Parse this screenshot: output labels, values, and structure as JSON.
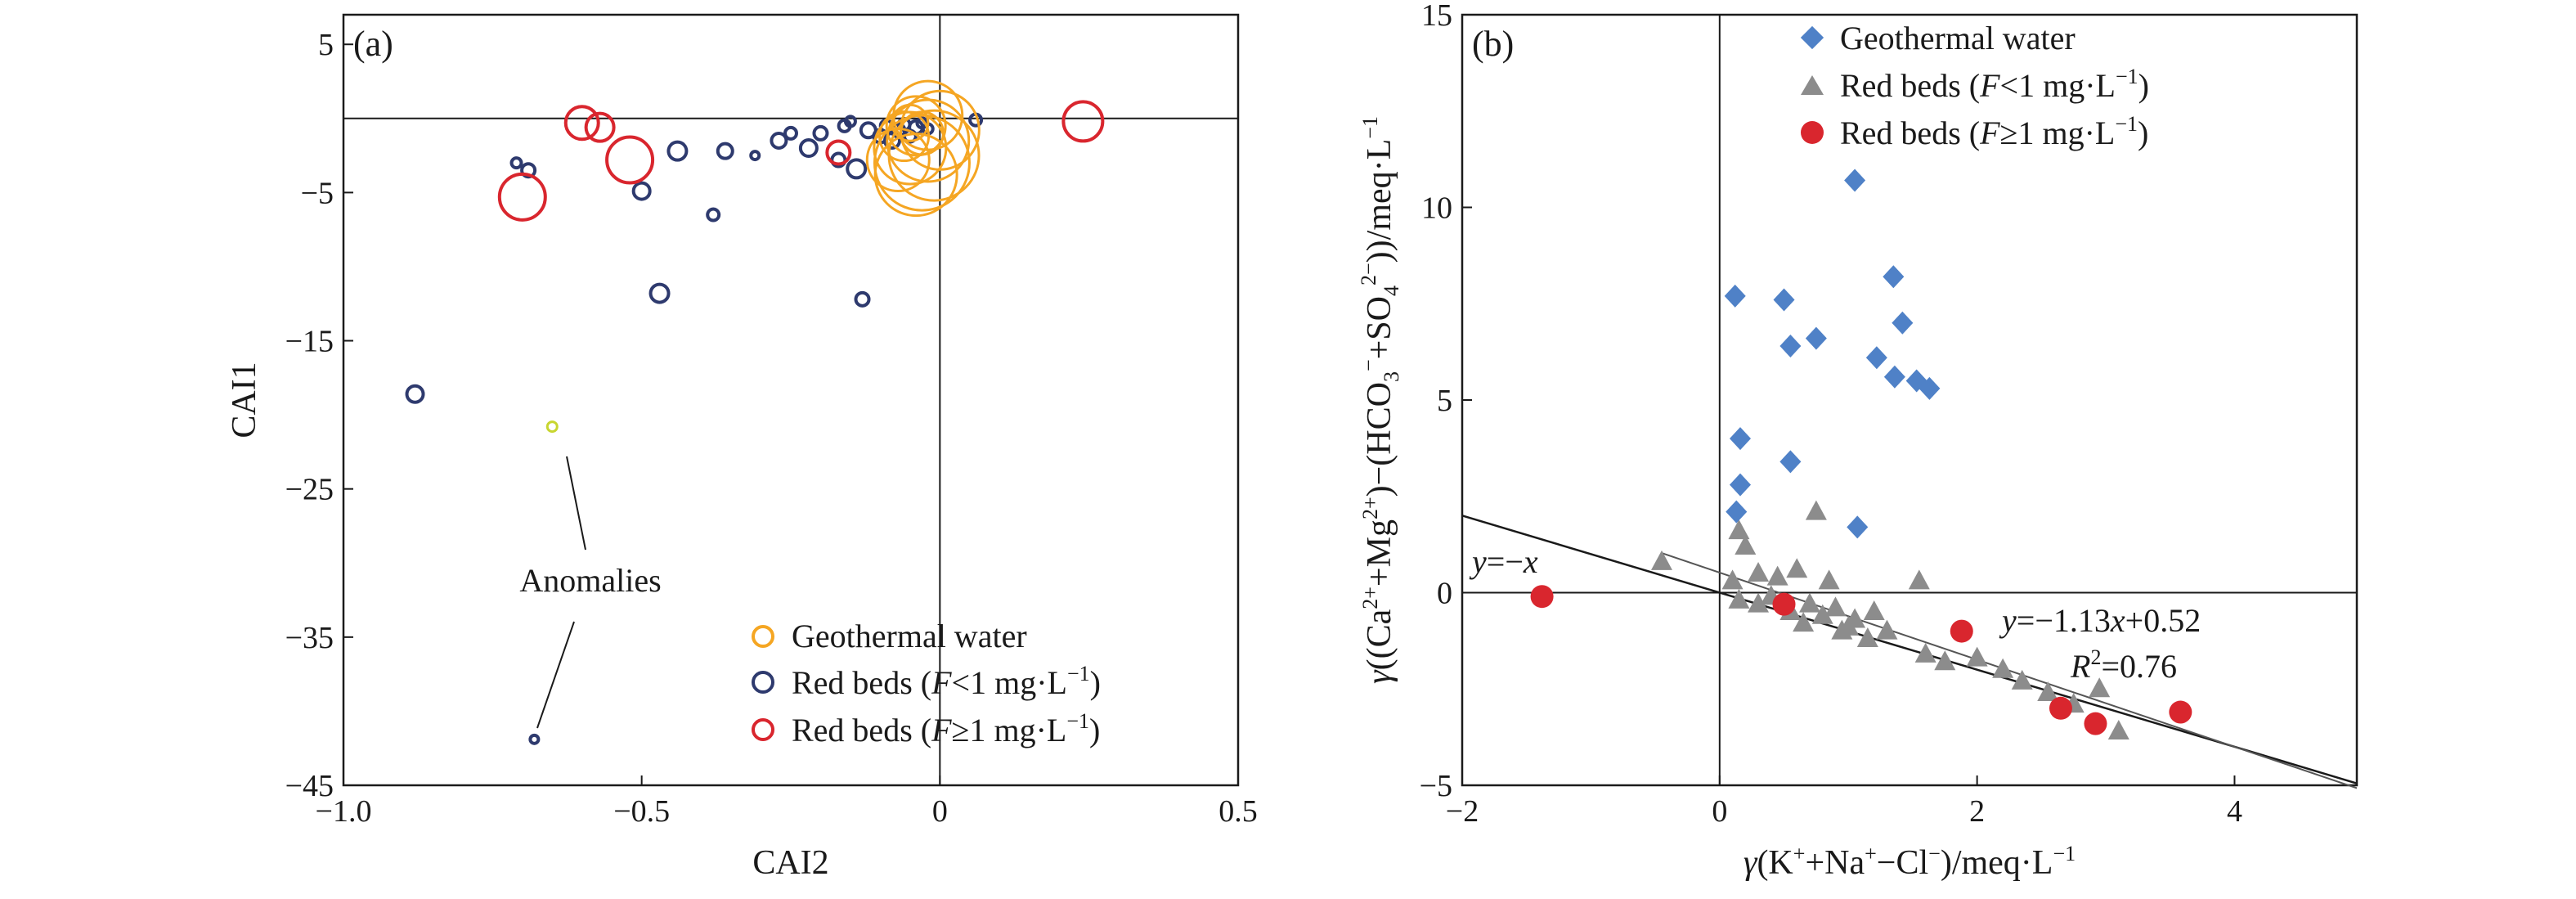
{
  "chart_data": [
    {
      "panel": "(a)",
      "type": "scatter",
      "xlabel": "CAI2",
      "ylabel": "CAI1",
      "xlim": [
        -1.0,
        0.5
      ],
      "ylim": [
        -45,
        7
      ],
      "xticks": [
        -1.0,
        -0.5,
        0,
        0.5
      ],
      "xtick_labels": [
        "−1.0",
        "−0.5",
        "0",
        "0.5"
      ],
      "yticks": [
        5,
        -5,
        -15,
        -25,
        -35,
        -45
      ],
      "ytick_labels": [
        "5",
        "−5",
        "−15",
        "−25",
        "−35",
        "−45"
      ],
      "reference_lines": {
        "x": 0,
        "y": 0
      },
      "legend_position": "bottom-right",
      "legend": [
        {
          "label": "Geothermal water",
          "color": "#F5A623",
          "marker": "open-circle"
        },
        {
          "label": "Red beds (F<1 mg·L−1)",
          "color": "#2E3A6E",
          "marker": "open-circle"
        },
        {
          "label": "Red beds (F≥1 mg·L−1)",
          "color": "#D9262E",
          "marker": "open-circle"
        }
      ],
      "annotation": {
        "text": "Anomalies",
        "targets": [
          [
            -0.65,
            -20.8
          ],
          [
            -0.68,
            -41.9
          ]
        ]
      },
      "series": [
        {
          "name": "Geothermal water",
          "color": "#F5A623",
          "points": [
            {
              "x": -0.02,
              "y": -1.5,
              "r": 50
            },
            {
              "x": -0.03,
              "y": -3.0,
              "r": 58
            },
            {
              "x": -0.05,
              "y": -2.0,
              "r": 44
            },
            {
              "x": -0.04,
              "y": -0.5,
              "r": 36
            },
            {
              "x": -0.02,
              "y": 0.2,
              "r": 42
            },
            {
              "x": -0.06,
              "y": -1.2,
              "r": 30
            },
            {
              "x": -0.01,
              "y": -2.5,
              "r": 55
            },
            {
              "x": -0.04,
              "y": -3.8,
              "r": 50
            },
            {
              "x": -0.03,
              "y": -1.0,
              "r": 26
            },
            {
              "x": -0.07,
              "y": -2.8,
              "r": 38
            },
            {
              "x": 0.0,
              "y": -0.8,
              "r": 48
            },
            {
              "x": -0.05,
              "y": -0.3,
              "r": 22
            }
          ]
        },
        {
          "name": "Red beds (F<1 mg·L−1)",
          "color": "#2E3A6E",
          "points": [
            {
              "x": -0.88,
              "y": -18.6,
              "r": 10
            },
            {
              "x": -0.68,
              "y": -41.9,
              "r": 5
            },
            {
              "x": -0.71,
              "y": -3.0,
              "r": 6
            },
            {
              "x": -0.69,
              "y": -3.5,
              "r": 8
            },
            {
              "x": -0.5,
              "y": -4.9,
              "r": 10
            },
            {
              "x": -0.47,
              "y": -11.8,
              "r": 11
            },
            {
              "x": -0.44,
              "y": -2.2,
              "r": 11
            },
            {
              "x": -0.38,
              "y": -6.5,
              "r": 7
            },
            {
              "x": -0.36,
              "y": -2.2,
              "r": 9
            },
            {
              "x": -0.31,
              "y": -2.5,
              "r": 5
            },
            {
              "x": -0.27,
              "y": -1.5,
              "r": 9
            },
            {
              "x": -0.25,
              "y": -1.0,
              "r": 7
            },
            {
              "x": -0.22,
              "y": -2.0,
              "r": 10
            },
            {
              "x": -0.2,
              "y": -1.0,
              "r": 8
            },
            {
              "x": -0.17,
              "y": -2.8,
              "r": 8
            },
            {
              "x": -0.16,
              "y": -0.5,
              "r": 7
            },
            {
              "x": -0.14,
              "y": -3.4,
              "r": 11
            },
            {
              "x": -0.13,
              "y": -12.2,
              "r": 8
            },
            {
              "x": -0.12,
              "y": -0.8,
              "r": 9
            },
            {
              "x": -0.1,
              "y": -1.2,
              "r": 8
            },
            {
              "x": -0.09,
              "y": -0.5,
              "r": 7
            },
            {
              "x": -0.08,
              "y": -1.5,
              "r": 9
            },
            {
              "x": -0.07,
              "y": -0.8,
              "r": 8
            },
            {
              "x": -0.06,
              "y": -0.4,
              "r": 7
            },
            {
              "x": -0.05,
              "y": -1.2,
              "r": 7
            },
            {
              "x": -0.04,
              "y": -0.6,
              "r": 8
            },
            {
              "x": -0.03,
              "y": -0.3,
              "r": 6
            },
            {
              "x": -0.02,
              "y": -0.7,
              "r": 6
            },
            {
              "x": -0.15,
              "y": -0.2,
              "r": 6
            },
            {
              "x": 0.06,
              "y": -0.1,
              "r": 7
            }
          ]
        },
        {
          "name": "Red beds (F≥1 mg·L−1)",
          "color": "#D9262E",
          "points": [
            {
              "x": -0.6,
              "y": -0.3,
              "r": 20
            },
            {
              "x": -0.57,
              "y": -0.6,
              "r": 17
            },
            {
              "x": -0.52,
              "y": -2.8,
              "r": 28
            },
            {
              "x": -0.7,
              "y": -5.3,
              "r": 28
            },
            {
              "x": -0.17,
              "y": -2.3,
              "r": 14
            },
            {
              "x": 0.24,
              "y": -0.2,
              "r": 24
            }
          ]
        }
      ]
    },
    {
      "panel": "(b)",
      "type": "scatter",
      "xlabel": "γ(K⁺+Na⁺−Cl⁻)/meq·L⁻¹",
      "ylabel": "γ((Ca²⁺+Mg²⁺)−(HCO₃⁻+SO₄²⁻))/meq·L⁻¹",
      "xlim": [
        -2,
        4.95
      ],
      "ylim": [
        -5,
        15
      ],
      "xticks": [
        -2,
        0,
        2,
        4
      ],
      "xtick_labels": [
        "−2",
        "0",
        "2",
        "4"
      ],
      "yticks": [
        -5,
        0,
        5,
        10,
        15
      ],
      "ytick_labels": [
        "−5",
        "0",
        "5",
        "10",
        "15"
      ],
      "reference_lines": {
        "x": 0,
        "y": 0
      },
      "legend_position": "top-right",
      "legend": [
        {
          "label": "Geothermal water",
          "color": "#4F81C7",
          "marker": "diamond"
        },
        {
          "label": "Red beds (F<1 mg·L−1)",
          "color": "#8C8C8C",
          "marker": "triangle"
        },
        {
          "label": "Red beds (F≥1 mg·L−1)",
          "color": "#D9262E",
          "marker": "circle"
        }
      ],
      "lines": [
        {
          "label": "y=−x",
          "slope": -1,
          "intercept": 0
        },
        {
          "label": "y=−1.13x+0.52",
          "r2_label": "R2=0.76",
          "slope": -1.13,
          "intercept": 0.52
        }
      ],
      "series": [
        {
          "name": "Geothermal water",
          "color": "#4F81C7",
          "points": [
            {
              "x": 0.12,
              "y": 7.7
            },
            {
              "x": 0.5,
              "y": 7.6
            },
            {
              "x": 0.55,
              "y": 6.4
            },
            {
              "x": 0.75,
              "y": 6.6
            },
            {
              "x": 1.05,
              "y": 10.7
            },
            {
              "x": 1.22,
              "y": 6.1
            },
            {
              "x": 1.35,
              "y": 8.2
            },
            {
              "x": 1.42,
              "y": 7.0
            },
            {
              "x": 1.36,
              "y": 5.6
            },
            {
              "x": 1.53,
              "y": 5.5
            },
            {
              "x": 1.63,
              "y": 5.3
            },
            {
              "x": 0.16,
              "y": 4.0
            },
            {
              "x": 0.55,
              "y": 3.4
            },
            {
              "x": 0.16,
              "y": 2.8
            },
            {
              "x": 0.13,
              "y": 2.1
            },
            {
              "x": 1.07,
              "y": 1.7
            }
          ]
        },
        {
          "name": "Red beds (F<1 mg·L−1)",
          "color": "#8C8C8C",
          "points": [
            {
              "x": -0.45,
              "y": 0.8
            },
            {
              "x": 0.15,
              "y": 1.6
            },
            {
              "x": 0.2,
              "y": 1.2
            },
            {
              "x": 0.3,
              "y": 0.5
            },
            {
              "x": 0.45,
              "y": 0.4
            },
            {
              "x": 0.6,
              "y": 0.6
            },
            {
              "x": 0.75,
              "y": 2.1
            },
            {
              "x": 0.85,
              "y": 0.3
            },
            {
              "x": 1.55,
              "y": 0.3
            },
            {
              "x": 0.15,
              "y": -0.2
            },
            {
              "x": 0.3,
              "y": -0.3
            },
            {
              "x": 0.4,
              "y": -0.1
            },
            {
              "x": 0.55,
              "y": -0.5
            },
            {
              "x": 0.65,
              "y": -0.8
            },
            {
              "x": 0.8,
              "y": -0.6
            },
            {
              "x": 0.95,
              "y": -1.0
            },
            {
              "x": 1.05,
              "y": -0.7
            },
            {
              "x": 1.15,
              "y": -1.2
            },
            {
              "x": 1.3,
              "y": -1.0
            },
            {
              "x": 1.6,
              "y": -1.6
            },
            {
              "x": 1.75,
              "y": -1.8
            },
            {
              "x": 2.0,
              "y": -1.7
            },
            {
              "x": 2.2,
              "y": -2.0
            },
            {
              "x": 2.35,
              "y": -2.3
            },
            {
              "x": 2.55,
              "y": -2.6
            },
            {
              "x": 2.75,
              "y": -2.9
            },
            {
              "x": 2.95,
              "y": -2.5
            },
            {
              "x": 3.1,
              "y": -3.6
            },
            {
              "x": 0.7,
              "y": -0.3
            },
            {
              "x": 0.9,
              "y": -0.4
            },
            {
              "x": 1.0,
              "y": -0.9
            },
            {
              "x": 1.2,
              "y": -0.5
            },
            {
              "x": 0.1,
              "y": 0.3
            }
          ]
        },
        {
          "name": "Red beds (F≥1 mg·L−1)",
          "color": "#D9262E",
          "points": [
            {
              "x": -1.38,
              "y": -0.1
            },
            {
              "x": 0.5,
              "y": -0.3
            },
            {
              "x": 1.88,
              "y": -1.0
            },
            {
              "x": 2.65,
              "y": -3.0
            },
            {
              "x": 2.92,
              "y": -3.4
            },
            {
              "x": 3.58,
              "y": -3.1
            }
          ]
        }
      ]
    }
  ]
}
